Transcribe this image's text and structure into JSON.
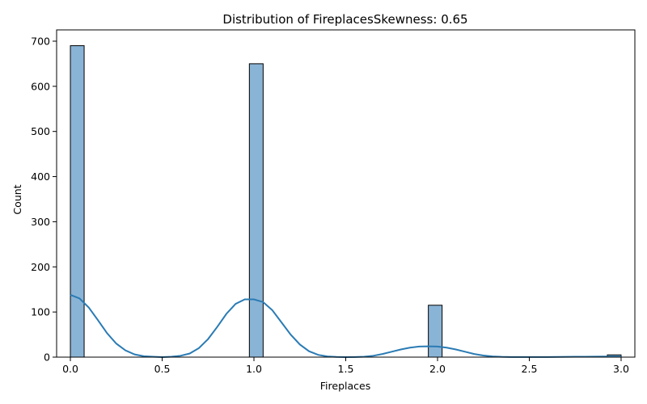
{
  "chart_data": {
    "type": "histogram",
    "title": "Distribution of FireplacesSkewness: 0.65",
    "xlabel": "Fireplaces",
    "ylabel": "Count",
    "xlim": [
      -0.075,
      3.075
    ],
    "ylim": [
      0,
      725
    ],
    "xticks": [
      0.0,
      0.5,
      1.0,
      1.5,
      2.0,
      2.5,
      3.0
    ],
    "xtick_labels": [
      "0.0",
      "0.5",
      "1.0",
      "1.5",
      "2.0",
      "2.5",
      "3.0"
    ],
    "yticks": [
      0,
      100,
      200,
      300,
      400,
      500,
      600,
      700
    ],
    "ytick_labels": [
      "0",
      "100",
      "200",
      "300",
      "400",
      "500",
      "600",
      "700"
    ],
    "bin_width": 0.075,
    "bins": [
      {
        "x": 0.0,
        "count": 690
      },
      {
        "x": 0.975,
        "count": 650
      },
      {
        "x": 1.95,
        "count": 115
      },
      {
        "x": 2.925,
        "count": 5
      }
    ],
    "kde": {
      "x": [
        0.0,
        0.05,
        0.1,
        0.15,
        0.2,
        0.25,
        0.3,
        0.35,
        0.4,
        0.45,
        0.5,
        0.55,
        0.6,
        0.65,
        0.7,
        0.75,
        0.8,
        0.85,
        0.9,
        0.95,
        1.0,
        1.05,
        1.1,
        1.15,
        1.2,
        1.25,
        1.3,
        1.35,
        1.4,
        1.45,
        1.5,
        1.55,
        1.6,
        1.65,
        1.7,
        1.75,
        1.8,
        1.85,
        1.9,
        1.95,
        2.0,
        2.05,
        2.1,
        2.15,
        2.2,
        2.25,
        2.3,
        2.35,
        2.4,
        2.45,
        2.5,
        2.55,
        2.6,
        2.65,
        2.7,
        2.75,
        2.8,
        2.85,
        2.9,
        2.95,
        3.0
      ],
      "y": [
        138,
        130,
        110,
        82,
        53,
        30,
        15,
        6,
        2,
        1,
        0,
        1,
        3,
        8,
        20,
        40,
        67,
        96,
        118,
        128,
        128,
        122,
        104,
        77,
        50,
        28,
        13,
        5,
        1.5,
        0.5,
        0,
        0.3,
        1,
        3,
        7,
        12,
        17,
        21,
        23.5,
        24,
        23.5,
        21,
        17,
        12,
        7,
        3.5,
        1.5,
        0.6,
        0.3,
        0.2,
        0.2,
        0.2,
        0.3,
        0.4,
        0.6,
        0.8,
        1,
        1.2,
        1.3,
        1.3,
        1.2
      ]
    },
    "colors": {
      "bar_fill": "#8ab4d6",
      "bar_edge": "#000000",
      "kde_line": "#2a7bb4",
      "axis": "#000000"
    },
    "grid": false,
    "legend": "none"
  }
}
